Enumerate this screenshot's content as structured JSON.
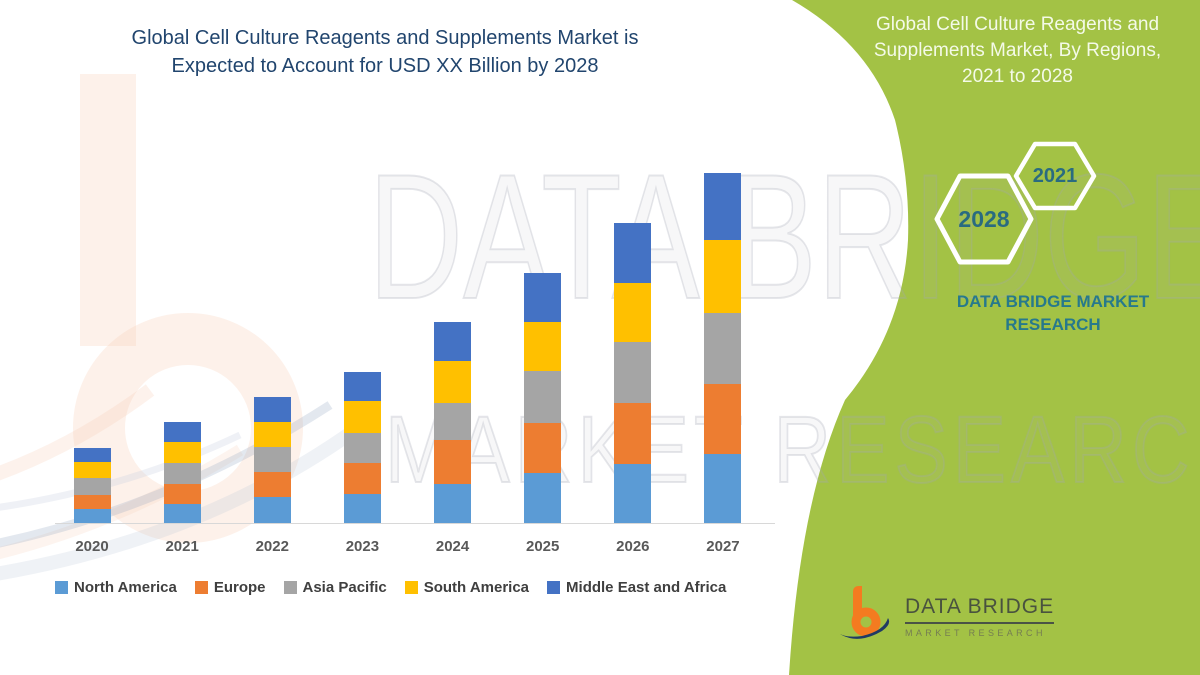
{
  "page": {
    "background": "#ffffff",
    "accent_green": "#A3C245",
    "title_color": "#21456E",
    "brand_teal": "#27798C"
  },
  "main_title": {
    "line1": "Global Cell Culture Reagents and Supplements Market is",
    "line2": "Expected to Account for USD XX Billion by 2028"
  },
  "chart_data": {
    "type": "bar",
    "stacked": true,
    "categories": [
      "2020",
      "2021",
      "2022",
      "2023",
      "2024",
      "2025",
      "2026",
      "2027"
    ],
    "series": [
      {
        "name": "North America",
        "color": "#5B9BD5",
        "values": [
          14.5,
          19.5,
          26,
          29.5,
          39.5,
          50,
          59.5,
          69
        ]
      },
      {
        "name": "Europe",
        "color": "#ED7D31",
        "values": [
          14,
          20,
          25,
          30.5,
          44,
          50,
          60.5,
          70
        ]
      },
      {
        "name": "Asia Pacific",
        "color": "#A5A5A5",
        "values": [
          16.5,
          21,
          25,
          30,
          36.5,
          52.5,
          61.5,
          71.5
        ]
      },
      {
        "name": "South America",
        "color": "#FFC000",
        "values": [
          16.5,
          20.5,
          25,
          32.5,
          42.5,
          48.5,
          58.5,
          72.5
        ]
      },
      {
        "name": "Middle East and Africa",
        "color": "#4472C4",
        "values": [
          13.5,
          20,
          25,
          29,
          38.5,
          49.5,
          60.5,
          67.5
        ]
      }
    ],
    "title": "Global Cell Culture Reagents and Supplements Market is Expected to Account for USD XX Billion by 2028",
    "xlabel": "",
    "ylabel": "",
    "units_note": "no y-axis shown; values are relative stacked-segment heights (market sized as USD XX Billion)",
    "legend_position": "bottom",
    "gridlines": false
  },
  "side_panel": {
    "title_lines": [
      "Global Cell Culture Reagents and",
      "Supplements Market, By Regions,",
      "2021 to 2028"
    ],
    "hexagons": [
      {
        "label": "2028"
      },
      {
        "label": "2021"
      }
    ],
    "brand_line1": "DATA BRIDGE MARKET",
    "brand_line2": "RESEARCH"
  },
  "watermark": {
    "line1": "DATA BRIDGE",
    "line2": "MARKET RESEARCH"
  },
  "footer_logo": {
    "brand": "DATA BRIDGE",
    "tagline": "MARKET RESEARCH"
  }
}
